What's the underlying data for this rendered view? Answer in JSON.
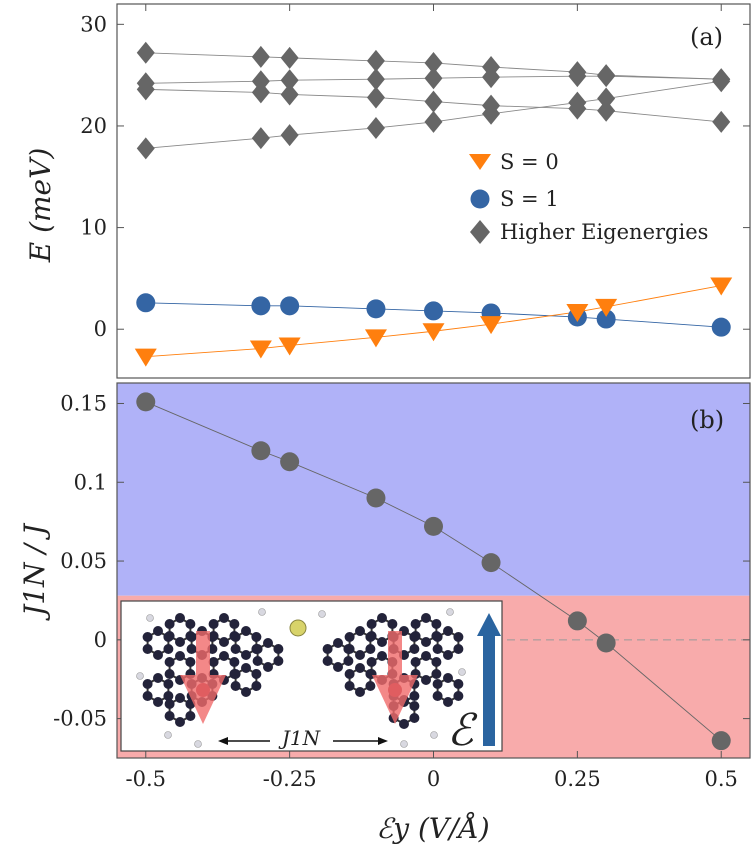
{
  "chart_data": [
    {
      "panel": "a",
      "type": "scatter",
      "panel_label": "(a)",
      "ylabel": "E (meV)",
      "ylim": [
        -4.8,
        32
      ],
      "yticks": [
        {
          "v": 0,
          "t": "0"
        },
        {
          "v": 10,
          "t": "10"
        },
        {
          "v": 20,
          "t": "20"
        },
        {
          "v": 30,
          "t": "30"
        }
      ],
      "x": [
        -0.5,
        -0.3,
        -0.25,
        -0.1,
        0,
        0.1,
        0.25,
        0.3,
        0.5
      ],
      "series": [
        {
          "name": "S = 0",
          "legend": "S = 0",
          "marker": "triangle",
          "color": "#FF7F0E",
          "values": [
            -2.7,
            -1.9,
            -1.6,
            -0.8,
            -0.2,
            0.5,
            1.7,
            2.2,
            4.3
          ]
        },
        {
          "name": "S = 1",
          "legend": "S = 1",
          "marker": "circle",
          "color": "#3465A4",
          "values": [
            2.6,
            2.3,
            2.3,
            2.0,
            1.8,
            1.6,
            1.2,
            1.0,
            0.2
          ]
        },
        {
          "name": "Higher Eigenergies",
          "legend": "Higher Eigenergies",
          "marker": "diamond",
          "color": "#666666",
          "branches": [
            [
              27.2,
              26.8,
              26.7,
              26.4,
              26.2,
              25.8,
              25.3,
              25.0,
              24.6
            ],
            [
              24.2,
              24.4,
              24.5,
              24.6,
              24.7,
              24.8,
              24.9,
              24.9,
              24.6
            ],
            [
              23.6,
              23.3,
              23.1,
              22.8,
              22.4,
              22.0,
              21.7,
              21.5,
              20.4
            ],
            [
              17.8,
              18.8,
              19.1,
              19.8,
              20.4,
              21.2,
              22.3,
              22.7,
              24.4
            ]
          ]
        }
      ]
    },
    {
      "panel": "b",
      "type": "line",
      "panel_label": "(b)",
      "ylabel": "J1N / J",
      "xlabel": "ℰy (V/Å)",
      "ylim": [
        -0.075,
        0.163
      ],
      "yticks": [
        {
          "v": -0.05,
          "t": "-0.05"
        },
        {
          "v": 0,
          "t": "0"
        },
        {
          "v": 0.05,
          "t": "0.05"
        },
        {
          "v": 0.1,
          "t": "0.1"
        },
        {
          "v": 0.15,
          "t": "0.15"
        }
      ],
      "xlim": [
        -0.55,
        0.55
      ],
      "xticks": [
        {
          "v": -0.5,
          "t": "-0.5"
        },
        {
          "v": -0.25,
          "t": "-0.25"
        },
        {
          "v": 0,
          "t": "0"
        },
        {
          "v": 0.25,
          "t": "0.25"
        },
        {
          "v": 0.5,
          "t": "0.5"
        }
      ],
      "x": [
        -0.5,
        -0.3,
        -0.25,
        -0.1,
        0,
        0.1,
        0.25,
        0.3,
        0.5
      ],
      "values": [
        0.151,
        0.12,
        0.113,
        0.09,
        0.072,
        0.049,
        0.012,
        -0.002,
        -0.064
      ],
      "region_boundary": 0.028,
      "upper_region_color": "#B0B2F8",
      "lower_region_color": "#F8ABAB",
      "marker_color": "#666666",
      "zero_line": true,
      "inset": {
        "coupling_label": "J1N",
        "field_label": "ℰ"
      }
    }
  ]
}
